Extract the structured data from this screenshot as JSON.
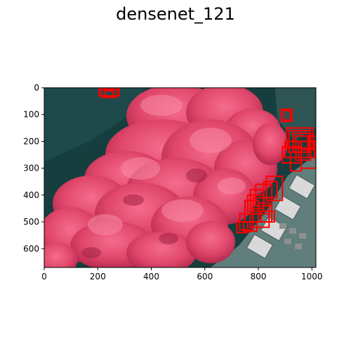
{
  "figure": {
    "title": "densenet_121",
    "image_description_colors": {
      "shadow": "#163e3e",
      "foliage_dark": "#b5294d",
      "foliage": "#e0476b",
      "foliage_light": "#f36a8c",
      "pavement": "#5f7e7c",
      "box": "#ff0000"
    }
  },
  "axes": {
    "xlim": [
      0,
      1015
    ],
    "ylim": [
      670,
      0
    ],
    "x_ticks": [
      0,
      200,
      400,
      600,
      800,
      1000
    ],
    "y_ticks": [
      0,
      100,
      200,
      300,
      400,
      500,
      600
    ],
    "x_tick_labels": [
      "0",
      "200",
      "400",
      "600",
      "800",
      "1000"
    ],
    "y_tick_labels": [
      "0",
      "100",
      "200",
      "300",
      "400",
      "500",
      "600"
    ]
  },
  "detections": [
    {
      "x": 205,
      "y": 5,
      "w": 75,
      "h": 25
    },
    {
      "x": 215,
      "y": 8,
      "w": 55,
      "h": 28
    },
    {
      "x": 228,
      "y": 12,
      "w": 30,
      "h": 20
    },
    {
      "x": 885,
      "y": 80,
      "w": 40,
      "h": 45
    },
    {
      "x": 895,
      "y": 85,
      "w": 25,
      "h": 35
    },
    {
      "x": 905,
      "y": 150,
      "w": 100,
      "h": 75
    },
    {
      "x": 915,
      "y": 160,
      "w": 80,
      "h": 80
    },
    {
      "x": 930,
      "y": 170,
      "w": 60,
      "h": 70
    },
    {
      "x": 940,
      "y": 180,
      "w": 55,
      "h": 90
    },
    {
      "x": 900,
      "y": 200,
      "w": 60,
      "h": 60
    },
    {
      "x": 890,
      "y": 220,
      "w": 70,
      "h": 60
    },
    {
      "x": 950,
      "y": 200,
      "w": 60,
      "h": 60
    },
    {
      "x": 920,
      "y": 240,
      "w": 40,
      "h": 70
    },
    {
      "x": 960,
      "y": 230,
      "w": 55,
      "h": 70
    },
    {
      "x": 985,
      "y": 180,
      "w": 30,
      "h": 80
    },
    {
      "x": 830,
      "y": 330,
      "w": 60,
      "h": 90
    },
    {
      "x": 820,
      "y": 350,
      "w": 50,
      "h": 60
    },
    {
      "x": 790,
      "y": 360,
      "w": 60,
      "h": 80
    },
    {
      "x": 770,
      "y": 380,
      "w": 50,
      "h": 70
    },
    {
      "x": 760,
      "y": 400,
      "w": 60,
      "h": 60
    },
    {
      "x": 780,
      "y": 410,
      "w": 70,
      "h": 90
    },
    {
      "x": 750,
      "y": 420,
      "w": 50,
      "h": 80
    },
    {
      "x": 800,
      "y": 430,
      "w": 40,
      "h": 70
    },
    {
      "x": 730,
      "y": 470,
      "w": 50,
      "h": 60
    },
    {
      "x": 720,
      "y": 500,
      "w": 40,
      "h": 40
    },
    {
      "x": 745,
      "y": 500,
      "w": 50,
      "h": 35
    },
    {
      "x": 770,
      "y": 470,
      "w": 70,
      "h": 50
    },
    {
      "x": 810,
      "y": 460,
      "w": 50,
      "h": 40
    }
  ]
}
